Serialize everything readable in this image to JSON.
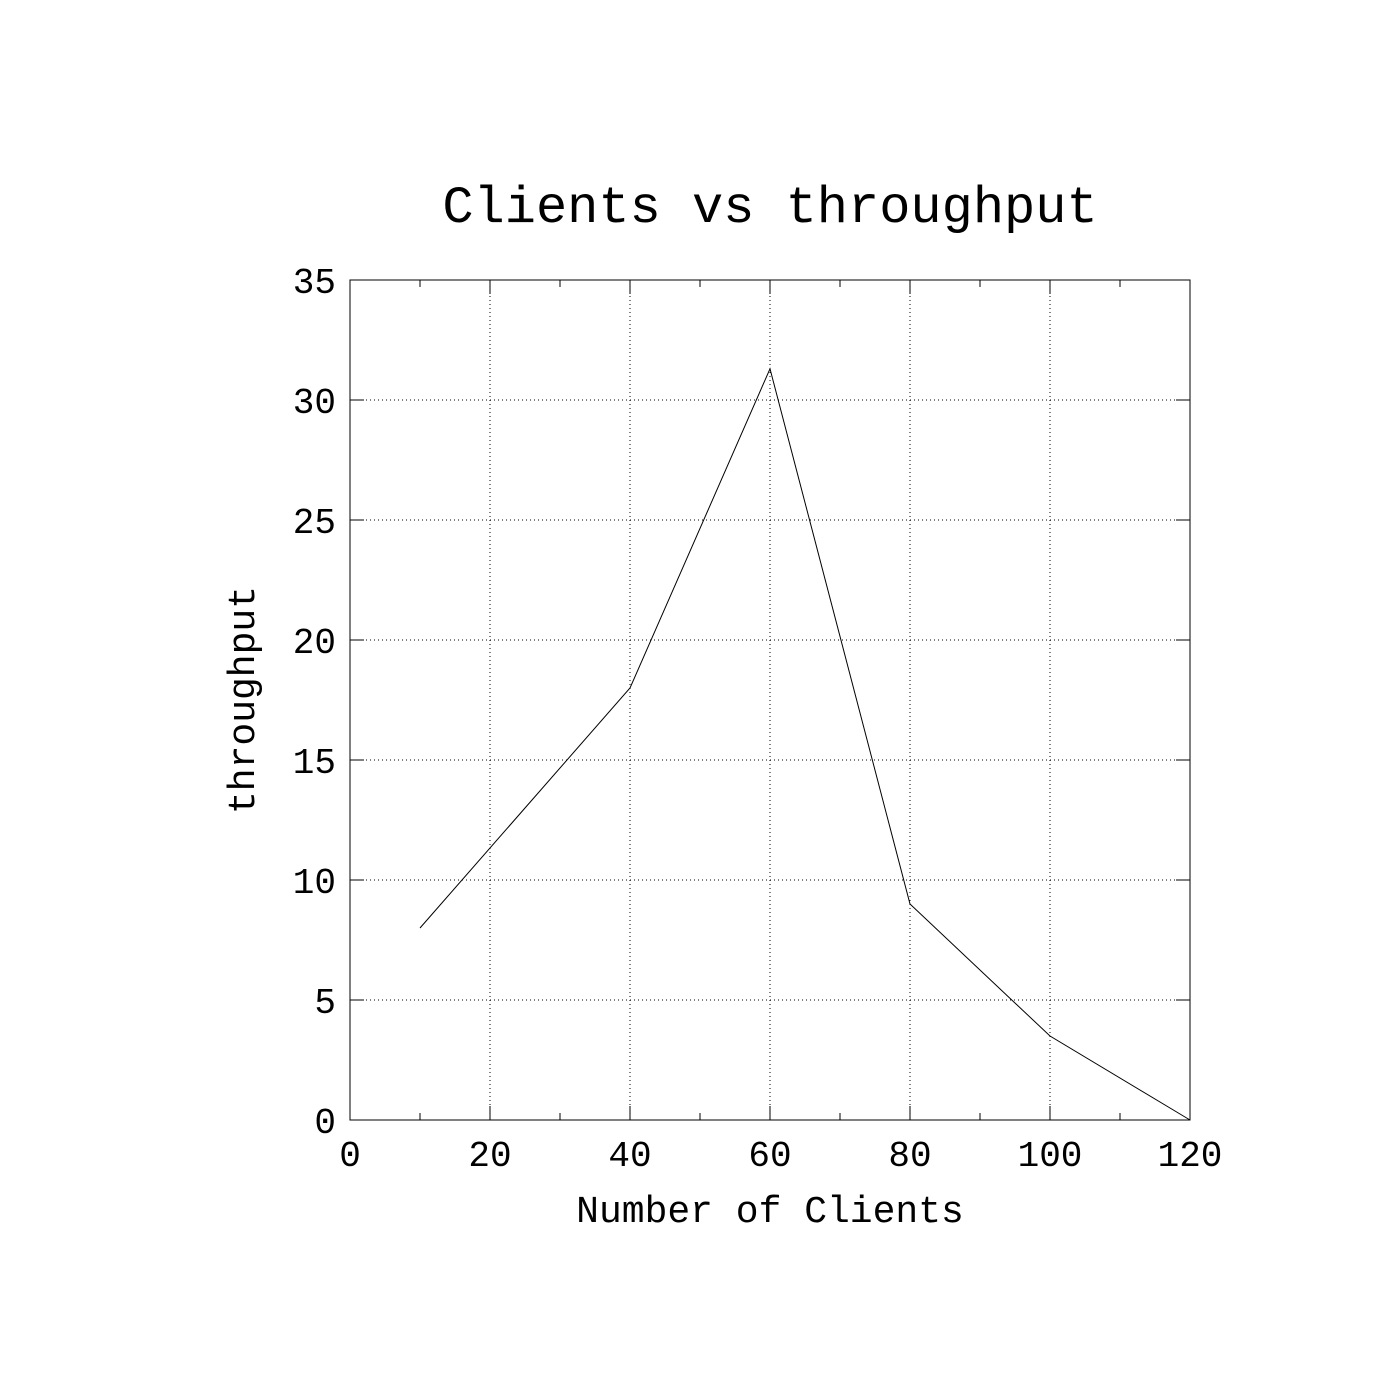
{
  "chart_data": {
    "type": "line",
    "title": "Clients vs throughput",
    "xlabel": "Number of Clients",
    "ylabel": "throughput",
    "xlim": [
      0,
      120
    ],
    "ylim": [
      0,
      35
    ],
    "xticks": [
      0,
      20,
      40,
      60,
      80,
      100,
      120
    ],
    "yticks": [
      0,
      5,
      10,
      15,
      20,
      25,
      30,
      35
    ],
    "x_minor_step": 10,
    "grid": true,
    "legend": "none",
    "series": [
      {
        "x": [
          10,
          40,
          60,
          80,
          100,
          120
        ],
        "values": [
          8,
          18,
          31.3,
          9,
          3.5,
          0
        ],
        "color": "#000000"
      }
    ]
  }
}
